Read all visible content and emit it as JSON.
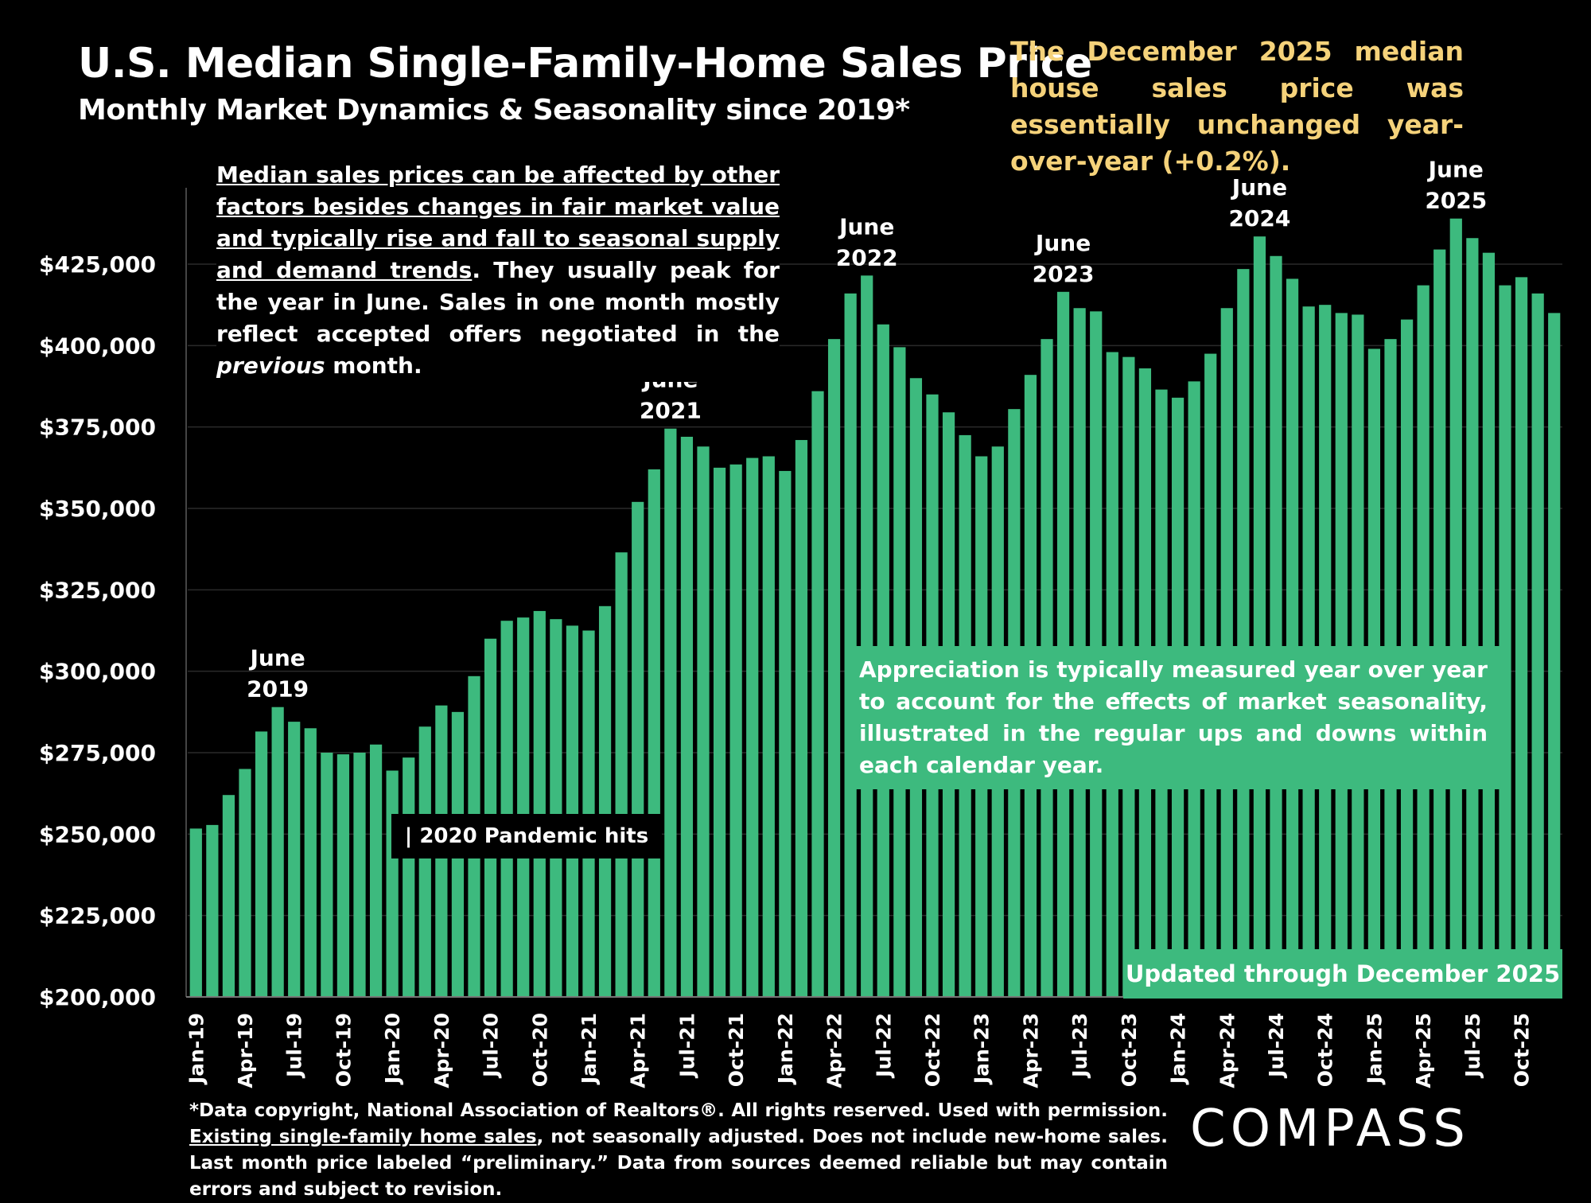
{
  "header": {
    "title": "U.S. Median Single-Family-Home Sales Price",
    "subtitle": "Monthly Market Dynamics & Seasonality since 2019*",
    "headline": "The December  2025 median house sales price was essentially unchanged year-over-year (+0.2%)."
  },
  "note": {
    "underlined": "Median sales prices can be affected by other factors besides changes in fair market value and typically rise and fall to seasonal supply and demand trends",
    "rest1": ". They usually peak for the year in June. Sales in one month mostly reflect accepted offers negotiated in the ",
    "italic": "previous",
    "rest2": " month."
  },
  "appreciation_note": "Appreciation is typically measured year over year to account for the effects of market seasonality, illustrated in the regular ups and downs within each calendar year.",
  "updated_label": "Updated through December 2025",
  "pandemic_label": "| 2020 Pandemic hits",
  "footnote": {
    "part1": "*Data copyright, National Association of Realtors®. All rights reserved. Used with permission. ",
    "link": "Existing single-family home sales",
    "part2": ", not seasonally adjusted. Does not include new-home sales. Last month price labeled “preliminary.” Data from sources deemed reliable but may contain errors and subject to revision."
  },
  "logo": "COMPASS",
  "colors": {
    "bar": "#3dba7e",
    "headline": "#f5d27a",
    "grid": "#2a2a2a"
  },
  "chart_data": {
    "type": "bar",
    "title": "U.S. Median Single-Family-Home Sales Price",
    "ylim": [
      200000,
      440000
    ],
    "yticks": [
      200000,
      225000,
      250000,
      275000,
      300000,
      325000,
      350000,
      375000,
      400000,
      425000
    ],
    "ytick_labels": [
      "$200,000",
      "$225,000",
      "$250,000",
      "$275,000",
      "$300,000",
      "$325,000",
      "$350,000",
      "$375,000",
      "$400,000",
      "$425,000"
    ],
    "xtick_labels": [
      "Jan-19",
      "Apr-19",
      "Jul-19",
      "Oct-19",
      "Jan-20",
      "Apr-20",
      "Jul-20",
      "Oct-20",
      "Jan-21",
      "Apr-21",
      "Jul-21",
      "Oct-21",
      "Jan-22",
      "Apr-22",
      "Jul-22",
      "Oct-22",
      "Jan-23",
      "Apr-23",
      "Jul-23",
      "Oct-23",
      "Jan-24",
      "Apr-24",
      "Jul-24",
      "Oct-24",
      "Jan-25",
      "Apr-25",
      "Jul-25",
      "Oct-25"
    ],
    "start_month": "Jan-19",
    "values": [
      251700,
      252800,
      262000,
      270000,
      281500,
      289000,
      284500,
      282500,
      275000,
      274500,
      275000,
      277500,
      269500,
      273500,
      283000,
      289500,
      287500,
      298500,
      310000,
      315500,
      316500,
      318500,
      316000,
      314000,
      312500,
      320000,
      336500,
      352000,
      362000,
      374500,
      372000,
      369000,
      362500,
      363500,
      365500,
      366000,
      361500,
      371000,
      386000,
      402000,
      416000,
      421500,
      406500,
      399500,
      390000,
      385000,
      379500,
      372500,
      366000,
      369000,
      380500,
      391000,
      402000,
      416500,
      411500,
      410500,
      398000,
      396500,
      393000,
      386500,
      384000,
      389000,
      397500,
      411500,
      423500,
      433500,
      427500,
      420500,
      412000,
      412500,
      410000,
      409500,
      399000,
      402000,
      408000,
      418500,
      429500,
      439000,
      433000,
      428500,
      418500,
      421000,
      416000,
      410000
    ],
    "annotations": [
      {
        "month_index": 5,
        "line1": "June",
        "line2": "2019"
      },
      {
        "month_index": 29,
        "line1": "June",
        "line2": "2021"
      },
      {
        "month_index": 41,
        "line1": "June",
        "line2": "2022"
      },
      {
        "month_index": 53,
        "line1": "June",
        "line2": "2023"
      },
      {
        "month_index": 65,
        "line1": "June",
        "line2": "2024"
      },
      {
        "month_index": 77,
        "line1": "June",
        "line2": "2025"
      }
    ],
    "grid": true
  }
}
